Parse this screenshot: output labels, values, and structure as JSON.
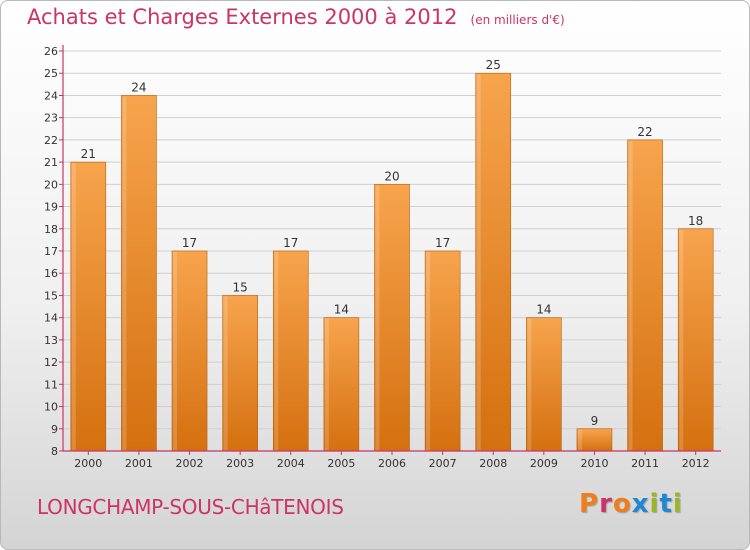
{
  "header": {
    "title": "Achats et Charges Externes 2000 à 2012",
    "subtitle": "(en milliers d'€)"
  },
  "footer": {
    "commune": "LONGCHAMP-SOUS-CHâTENOIS",
    "brand": "Proxiti"
  },
  "colors": {
    "title": "#cc3366",
    "bar_light": "#f7a44d",
    "bar_dark": "#d4700f",
    "axis": "#cc3366",
    "brand_letters": [
      "#ef7d1a",
      "#cc3366",
      "#ef7d1a",
      "#1e88d0",
      "#9ab52a",
      "#1e88d0",
      "#9ab52a"
    ]
  },
  "chart_data": {
    "type": "bar",
    "categories": [
      "2000",
      "2001",
      "2002",
      "2003",
      "2004",
      "2005",
      "2006",
      "2007",
      "2008",
      "2009",
      "2010",
      "2011",
      "2012"
    ],
    "values": [
      21,
      24,
      17,
      15,
      17,
      14,
      20,
      17,
      25,
      14,
      9,
      22,
      18
    ],
    "data_labels": [
      "21",
      "24",
      "17",
      "15",
      "17",
      "14",
      "20",
      "17",
      "25",
      "14",
      "9",
      "22",
      "18"
    ],
    "ylim": [
      8,
      26
    ],
    "yticks": [
      8,
      9,
      10,
      11,
      12,
      13,
      14,
      15,
      16,
      17,
      18,
      19,
      20,
      21,
      22,
      23,
      24,
      25,
      26
    ],
    "grid": true,
    "legend": "none"
  }
}
